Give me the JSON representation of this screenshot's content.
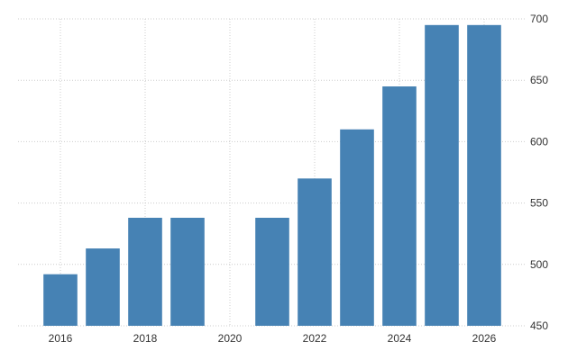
{
  "chart_data": {
    "type": "bar",
    "x": [
      2016,
      2017,
      2018,
      2019,
      2021,
      2022,
      2023,
      2024,
      2025,
      2026
    ],
    "values": [
      492,
      513,
      538,
      538,
      538,
      570,
      610,
      645,
      695,
      695
    ],
    "xlim": [
      2015,
      2027
    ],
    "ylim": [
      450,
      700
    ],
    "x_ticks": [
      2016,
      2018,
      2020,
      2022,
      2024,
      2026
    ],
    "y_ticks": [
      450,
      500,
      550,
      600,
      650,
      700
    ],
    "y_axis_side": "right",
    "grid": true,
    "title": "",
    "xlabel": "",
    "ylabel": "",
    "colors": {
      "bar": "#4682b4",
      "grid": "#cccccc"
    }
  }
}
